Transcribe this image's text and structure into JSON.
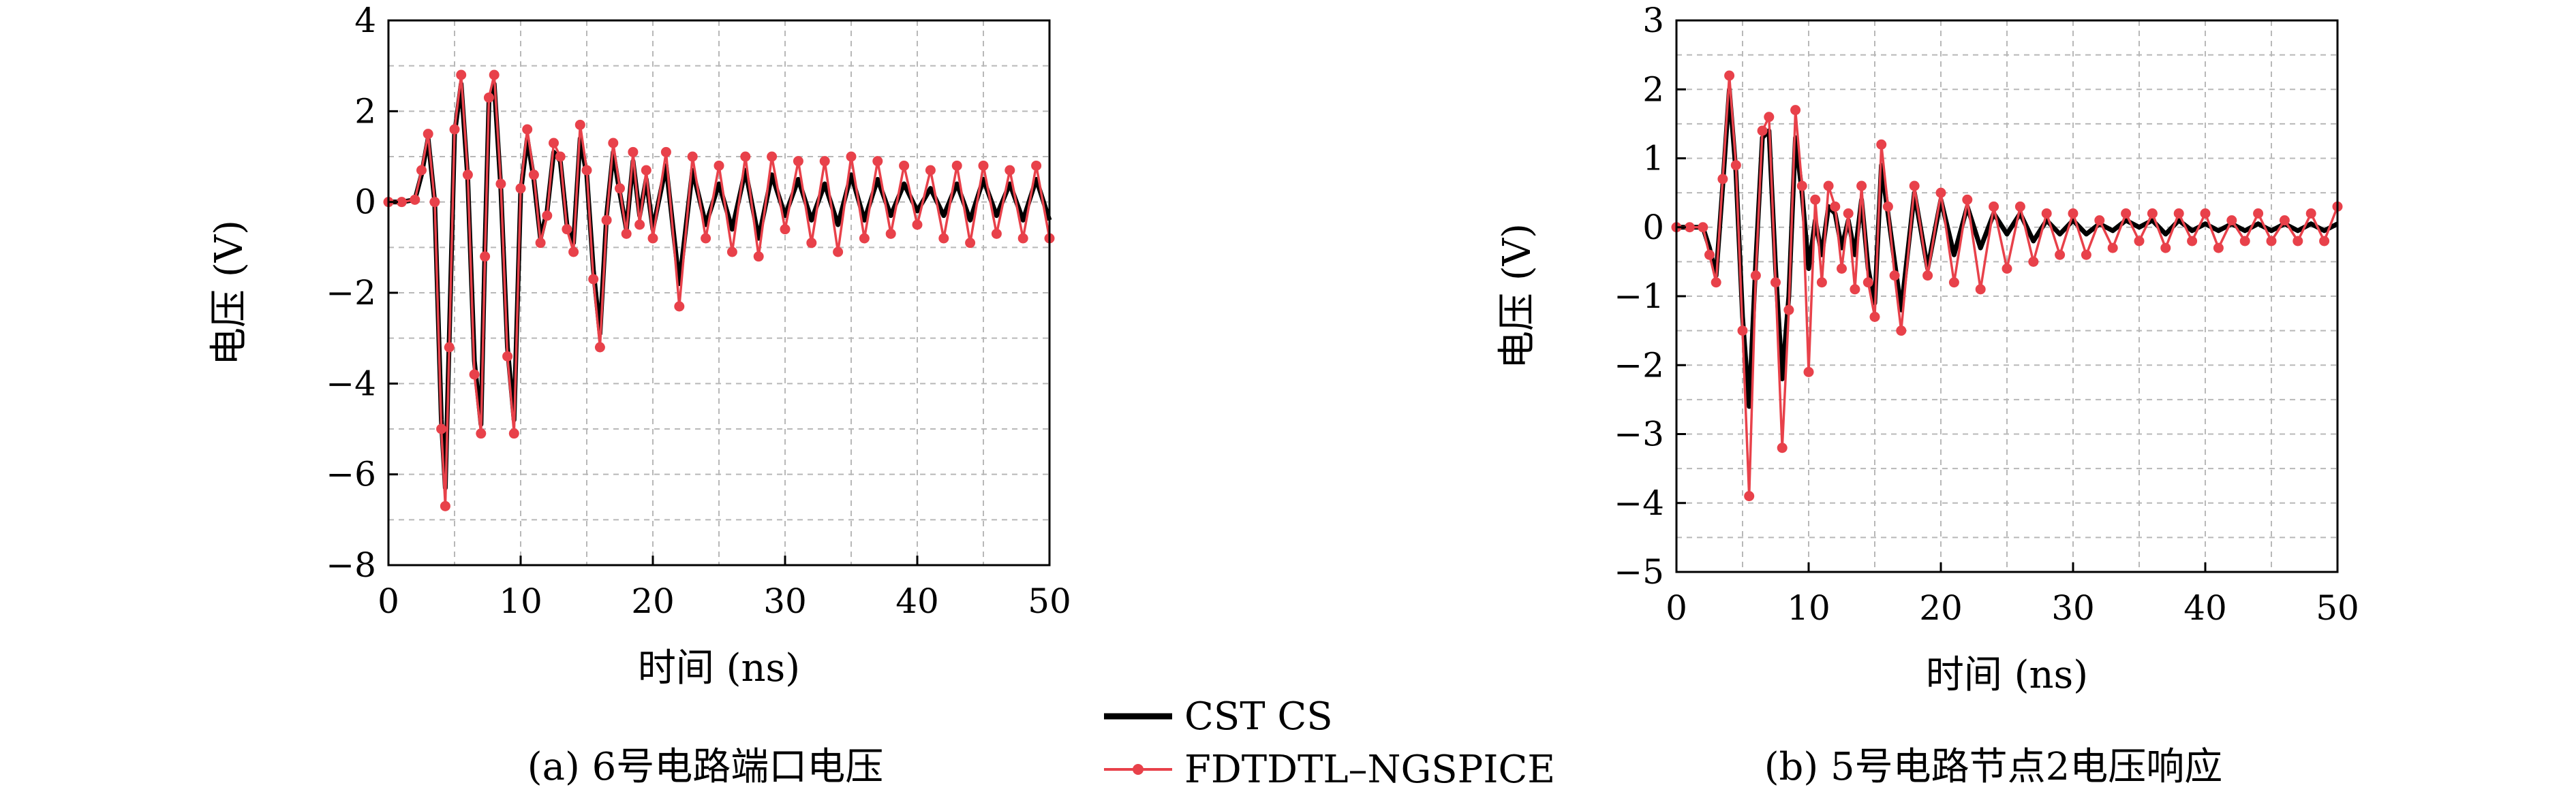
{
  "chart_data": [
    {
      "type": "line",
      "caption": "(a) 6号电路端口电压",
      "xlabel": "时间 (ns)",
      "ylabel": "电压 (V)",
      "xlim": [
        0,
        50
      ],
      "ylim": [
        -8,
        4
      ],
      "xticks": [
        0,
        10,
        20,
        30,
        40,
        50
      ],
      "yticks": [
        -8,
        -6,
        -4,
        -2,
        0,
        2,
        4
      ],
      "grid": true,
      "series": [
        {
          "name": "CST CS",
          "color": "#000000",
          "x": [
            0,
            1,
            2,
            2.5,
            3,
            3.5,
            4,
            4.3,
            4.6,
            5,
            5.5,
            6,
            6.5,
            7,
            7.3,
            7.6,
            8,
            8.5,
            9,
            9.5,
            10,
            10.5,
            11,
            11.5,
            12,
            12.5,
            13,
            13.5,
            14,
            14.5,
            15,
            15.5,
            16,
            16.5,
            17,
            17.5,
            18,
            18.5,
            19,
            19.5,
            20,
            21,
            22,
            23,
            24,
            25,
            26,
            27,
            28,
            29,
            30,
            31,
            32,
            33,
            34,
            35,
            36,
            37,
            38,
            39,
            40,
            41,
            42,
            43,
            44,
            45,
            46,
            47,
            48,
            49,
            50
          ],
          "y": [
            0,
            0,
            0.05,
            0.6,
            1.4,
            0,
            -4.8,
            -6.3,
            -3,
            1.5,
            2.6,
            0.5,
            -3.5,
            -4.9,
            -1,
            2.2,
            2.6,
            0.3,
            -3.2,
            -4.8,
            0.2,
            1.4,
            0.5,
            -0.8,
            -0.2,
            1.1,
            0.9,
            -0.5,
            -0.9,
            1.4,
            0.6,
            -1.5,
            -2.9,
            -0.3,
            1.1,
            0.2,
            -0.6,
            0.9,
            -0.3,
            0.5,
            -0.6,
            0.8,
            -1.8,
            0.7,
            -0.5,
            0.4,
            -0.6,
            0.7,
            -0.8,
            0.6,
            -0.3,
            0.5,
            -0.4,
            0.4,
            -0.5,
            0.6,
            -0.4,
            0.5,
            -0.3,
            0.4,
            -0.2,
            0.3,
            -0.3,
            0.4,
            -0.4,
            0.5,
            -0.3,
            0.4,
            -0.4,
            0.5,
            -0.4
          ]
        },
        {
          "name": "FDTDTL–NGSPICE",
          "color": "#e8414a",
          "x": [
            0,
            1,
            2,
            2.5,
            3,
            3.5,
            4,
            4.3,
            4.6,
            5,
            5.5,
            6,
            6.5,
            7,
            7.3,
            7.6,
            8,
            8.5,
            9,
            9.5,
            10,
            10.5,
            11,
            11.5,
            12,
            12.5,
            13,
            13.5,
            14,
            14.5,
            15,
            15.5,
            16,
            16.5,
            17,
            17.5,
            18,
            18.5,
            19,
            19.5,
            20,
            21,
            22,
            23,
            24,
            25,
            26,
            27,
            28,
            29,
            30,
            31,
            32,
            33,
            34,
            35,
            36,
            37,
            38,
            39,
            40,
            41,
            42,
            43,
            44,
            45,
            46,
            47,
            48,
            49,
            50
          ],
          "y": [
            0,
            0,
            0.05,
            0.7,
            1.5,
            0,
            -5,
            -6.7,
            -3.2,
            1.6,
            2.8,
            0.6,
            -3.8,
            -5.1,
            -1.2,
            2.3,
            2.8,
            0.4,
            -3.4,
            -5.1,
            0.3,
            1.6,
            0.6,
            -0.9,
            -0.3,
            1.3,
            1.0,
            -0.6,
            -1.1,
            1.7,
            0.7,
            -1.7,
            -3.2,
            -0.4,
            1.3,
            0.3,
            -0.7,
            1.1,
            -0.5,
            0.7,
            -0.8,
            1.1,
            -2.3,
            1.0,
            -0.8,
            0.8,
            -1.1,
            1.0,
            -1.2,
            1.0,
            -0.6,
            0.9,
            -0.9,
            0.9,
            -1.1,
            1.0,
            -0.8,
            0.9,
            -0.7,
            0.8,
            -0.5,
            0.7,
            -0.8,
            0.8,
            -0.9,
            0.8,
            -0.7,
            0.7,
            -0.8,
            0.8,
            -0.8
          ]
        }
      ]
    },
    {
      "type": "line",
      "caption": "(b) 5号电路节点2电压响应",
      "xlabel": "时间 (ns)",
      "ylabel": "电压 (V)",
      "xlim": [
        0,
        50
      ],
      "ylim": [
        -5,
        3
      ],
      "xticks": [
        0,
        10,
        20,
        30,
        40,
        50
      ],
      "yticks": [
        -5,
        -4,
        -3,
        -2,
        -1,
        0,
        1,
        2,
        3
      ],
      "grid": true,
      "series": [
        {
          "name": "CST CS",
          "color": "#000000",
          "x": [
            0,
            1,
            2,
            2.5,
            3,
            3.5,
            4,
            4.5,
            5,
            5.5,
            6,
            6.5,
            7,
            7.5,
            8,
            8.5,
            9,
            9.5,
            10,
            10.5,
            11,
            11.5,
            12,
            12.5,
            13,
            13.5,
            14,
            14.5,
            15,
            15.5,
            16,
            16.5,
            17,
            18,
            19,
            20,
            21,
            22,
            23,
            24,
            25,
            26,
            27,
            28,
            29,
            30,
            31,
            32,
            33,
            34,
            35,
            36,
            37,
            38,
            39,
            40,
            41,
            42,
            43,
            44,
            45,
            46,
            47,
            48,
            49,
            50
          ],
          "y": [
            0,
            0,
            0,
            -0.3,
            -0.7,
            0.6,
            2.0,
            0.8,
            -1.3,
            -2.6,
            -0.5,
            1.3,
            1.4,
            -0.6,
            -2.2,
            -1.0,
            1.3,
            0.5,
            -0.6,
            0.1,
            -0.4,
            0.3,
            0.2,
            -0.3,
            0.1,
            -0.4,
            0.4,
            -0.6,
            -1.1,
            0.9,
            0.2,
            -0.5,
            -1.2,
            0.5,
            -0.6,
            0.4,
            -0.4,
            0.3,
            -0.3,
            0.2,
            -0.1,
            0.2,
            -0.2,
            0.1,
            -0.1,
            0.1,
            -0.1,
            0.05,
            -0.05,
            0.1,
            0,
            0.1,
            -0.1,
            0.1,
            -0.05,
            0.05,
            -0.05,
            0.05,
            -0.05,
            0.05,
            -0.05,
            0.05,
            -0.05,
            0.05,
            -0.05,
            0.05
          ]
        },
        {
          "name": "FDTDTL–NGSPICE",
          "color": "#e8414a",
          "x": [
            0,
            1,
            2,
            2.5,
            3,
            3.5,
            4,
            4.5,
            5,
            5.5,
            6,
            6.5,
            7,
            7.5,
            8,
            8.5,
            9,
            9.5,
            10,
            10.5,
            11,
            11.5,
            12,
            12.5,
            13,
            13.5,
            14,
            14.5,
            15,
            15.5,
            16,
            16.5,
            17,
            18,
            19,
            20,
            21,
            22,
            23,
            24,
            25,
            26,
            27,
            28,
            29,
            30,
            31,
            32,
            33,
            34,
            35,
            36,
            37,
            38,
            39,
            40,
            41,
            42,
            43,
            44,
            45,
            46,
            47,
            48,
            49,
            50
          ],
          "y": [
            0,
            0,
            0,
            -0.4,
            -0.8,
            0.7,
            2.2,
            0.9,
            -1.5,
            -3.9,
            -0.7,
            1.4,
            1.6,
            -0.8,
            -3.2,
            -1.2,
            1.7,
            0.6,
            -2.1,
            0.4,
            -0.8,
            0.6,
            0.3,
            -0.6,
            0.2,
            -0.9,
            0.6,
            -0.8,
            -1.3,
            1.2,
            0.3,
            -0.7,
            -1.5,
            0.6,
            -0.7,
            0.5,
            -0.8,
            0.4,
            -0.9,
            0.3,
            -0.6,
            0.3,
            -0.5,
            0.2,
            -0.4,
            0.2,
            -0.4,
            0.1,
            -0.3,
            0.2,
            -0.2,
            0.2,
            -0.3,
            0.2,
            -0.2,
            0.2,
            -0.3,
            0.1,
            -0.2,
            0.2,
            -0.2,
            0.1,
            -0.2,
            0.2,
            -0.2,
            0.3
          ]
        }
      ]
    }
  ],
  "legend": {
    "placement": "bottom-center",
    "items": [
      {
        "label": "CST CS",
        "color": "#000000",
        "marker": "none"
      },
      {
        "label": "FDTDTL–NGSPICE",
        "color": "#e8414a",
        "marker": "circle"
      }
    ]
  }
}
